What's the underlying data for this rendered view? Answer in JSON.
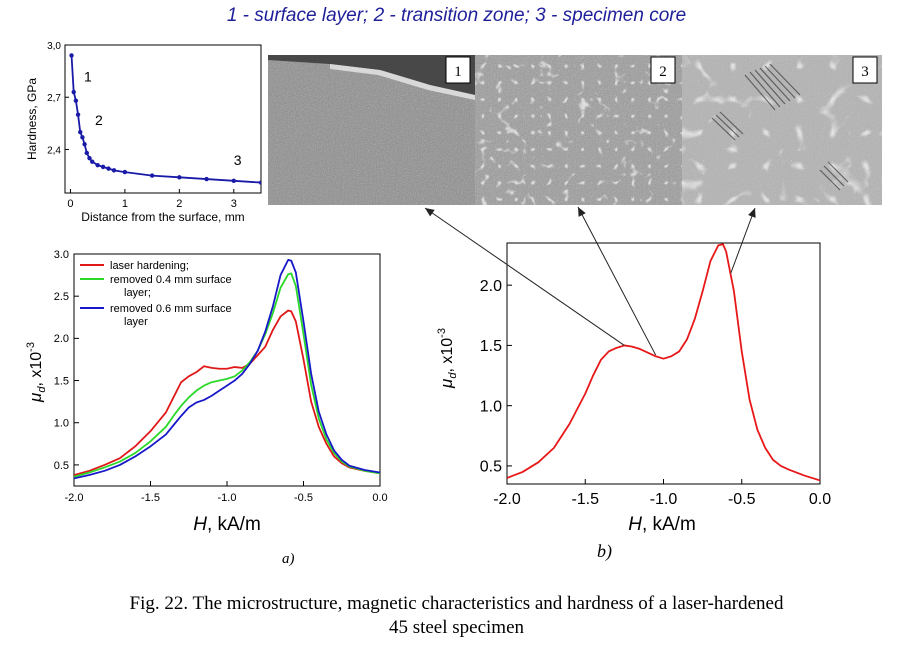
{
  "headline": "1 - surface layer;  2 - transition zone;  3 - specimen core",
  "caption": {
    "line1": "Fig. 22. The microstructure, magnetic characteristics and hardness of a laser-hardened",
    "line2": "45 steel specimen"
  },
  "micrographs": {
    "labels": [
      "1",
      "2",
      "3"
    ],
    "colors": {
      "zone1": "#8c8c8c",
      "zone2": "#9a9a9a",
      "zone3": "#b4b4b4",
      "ferrite": "#e6e6e6"
    }
  },
  "panel_labels": {
    "a": "a)",
    "b": "b)"
  },
  "chart_data": [
    {
      "id": "hardness",
      "type": "line",
      "xlabel": "Distance from the surface, mm",
      "ylabel": "Hardness, GPa",
      "xlim": [
        -0.1,
        3.5
      ],
      "ylim": [
        2.15,
        3.0
      ],
      "xticks": [
        0,
        1,
        2,
        3
      ],
      "yticks": [
        2.4,
        2.7,
        3.0
      ],
      "ytick_labels": [
        "2,4",
        "2,7",
        "3,0"
      ],
      "grid": false,
      "color": "#1a1aa8",
      "points": {
        "x": [
          0.02,
          0.06,
          0.1,
          0.14,
          0.18,
          0.22,
          0.26,
          0.3,
          0.35,
          0.4,
          0.5,
          0.6,
          0.7,
          0.8,
          1.0,
          1.5,
          2.0,
          2.5,
          3.0,
          3.5
        ],
        "y": [
          2.94,
          2.73,
          2.68,
          2.6,
          2.5,
          2.47,
          2.43,
          2.38,
          2.35,
          2.33,
          2.31,
          2.3,
          2.29,
          2.28,
          2.27,
          2.25,
          2.24,
          2.23,
          2.22,
          2.21
        ]
      },
      "annotations": [
        {
          "text": "1",
          "x": 0.25,
          "y": 2.79
        },
        {
          "text": "2",
          "x": 0.45,
          "y": 2.54
        },
        {
          "text": "3",
          "x": 3.0,
          "y": 2.31
        }
      ]
    },
    {
      "id": "panel-a",
      "type": "line",
      "xlabel_italic": "H",
      "xlabel_rest": ", kA/m",
      "ylabel_symbol": "μ",
      "ylabel_sub": "d",
      "ylabel_sep": ", ",
      "ylabel_unit": "x10",
      "ylabel_exp": "-3",
      "xlim": [
        -2.0,
        0.0
      ],
      "ylim": [
        0.25,
        3.0
      ],
      "xticks": [
        -2.0,
        -1.5,
        -1.0,
        -0.5,
        0.0
      ],
      "xtick_labels": [
        "-2.0",
        "-1.5",
        "-1.0",
        "-0.5",
        "0.0"
      ],
      "yticks": [
        0.5,
        1.0,
        1.5,
        2.0,
        2.5,
        3.0
      ],
      "ytick_labels": [
        "0.5",
        "1.0",
        "1.5",
        "2.0",
        "2.5",
        "3.0"
      ],
      "grid": false,
      "legend_position": "top-left",
      "x": [
        -2.0,
        -1.9,
        -1.8,
        -1.7,
        -1.6,
        -1.5,
        -1.4,
        -1.35,
        -1.3,
        -1.25,
        -1.2,
        -1.15,
        -1.1,
        -1.05,
        -1.0,
        -0.95,
        -0.9,
        -0.85,
        -0.8,
        -0.75,
        -0.7,
        -0.65,
        -0.6,
        -0.58,
        -0.55,
        -0.5,
        -0.45,
        -0.4,
        -0.35,
        -0.3,
        -0.25,
        -0.2,
        -0.1,
        0.0
      ],
      "series": [
        {
          "name": "laser hardening;",
          "color": "#e01818",
          "values": [
            0.38,
            0.43,
            0.5,
            0.58,
            0.72,
            0.9,
            1.12,
            1.3,
            1.48,
            1.55,
            1.6,
            1.67,
            1.65,
            1.64,
            1.64,
            1.66,
            1.65,
            1.7,
            1.8,
            1.9,
            2.1,
            2.26,
            2.33,
            2.32,
            2.2,
            1.75,
            1.25,
            0.95,
            0.75,
            0.6,
            0.52,
            0.47,
            0.43,
            0.4
          ]
        },
        {
          "name": "removed 0.4 mm surface layer;",
          "color": "#2ad82a",
          "values": [
            0.36,
            0.41,
            0.47,
            0.54,
            0.64,
            0.78,
            0.95,
            1.08,
            1.2,
            1.3,
            1.38,
            1.44,
            1.48,
            1.5,
            1.52,
            1.55,
            1.62,
            1.72,
            1.85,
            2.05,
            2.3,
            2.6,
            2.76,
            2.77,
            2.62,
            2.05,
            1.45,
            1.05,
            0.8,
            0.64,
            0.54,
            0.48,
            0.43,
            0.4
          ]
        },
        {
          "name": "removed 0.6 mm surface layer",
          "color": "#1818c8",
          "values": [
            0.34,
            0.38,
            0.43,
            0.5,
            0.6,
            0.72,
            0.86,
            0.97,
            1.08,
            1.18,
            1.24,
            1.27,
            1.32,
            1.38,
            1.44,
            1.5,
            1.58,
            1.7,
            1.85,
            2.08,
            2.38,
            2.75,
            2.93,
            2.92,
            2.78,
            2.2,
            1.58,
            1.13,
            0.86,
            0.67,
            0.56,
            0.49,
            0.44,
            0.41
          ]
        }
      ]
    },
    {
      "id": "panel-b",
      "type": "line",
      "xlabel_italic": "H",
      "xlabel_rest": ", kA/m",
      "ylabel_symbol": "μ",
      "ylabel_sub": "d",
      "ylabel_sep": ", ",
      "ylabel_unit": "x10",
      "ylabel_exp": "-3",
      "xlim": [
        -2.0,
        0.0
      ],
      "ylim": [
        0.35,
        2.35
      ],
      "xticks": [
        -2.0,
        -1.5,
        -1.0,
        -0.5,
        0.0
      ],
      "xtick_labels": [
        "-2.0",
        "-1.5",
        "-1.0",
        "-0.5",
        "0.0"
      ],
      "yticks": [
        0.5,
        1.0,
        1.5,
        2.0
      ],
      "ytick_labels": [
        "0.5",
        "1.0",
        "1.5",
        "2.0"
      ],
      "grid": false,
      "x": [
        -2.0,
        -1.9,
        -1.8,
        -1.7,
        -1.6,
        -1.5,
        -1.45,
        -1.4,
        -1.35,
        -1.3,
        -1.25,
        -1.2,
        -1.15,
        -1.1,
        -1.05,
        -1.0,
        -0.95,
        -0.9,
        -0.85,
        -0.8,
        -0.75,
        -0.7,
        -0.65,
        -0.62,
        -0.6,
        -0.55,
        -0.5,
        -0.45,
        -0.4,
        -0.35,
        -0.3,
        -0.25,
        -0.2,
        -0.1,
        0.0
      ],
      "series": [
        {
          "name": "",
          "color": "#e81818",
          "values": [
            0.4,
            0.45,
            0.53,
            0.65,
            0.85,
            1.1,
            1.25,
            1.38,
            1.45,
            1.48,
            1.5,
            1.49,
            1.47,
            1.44,
            1.41,
            1.39,
            1.41,
            1.45,
            1.55,
            1.72,
            1.95,
            2.2,
            2.33,
            2.34,
            2.28,
            1.95,
            1.45,
            1.05,
            0.8,
            0.65,
            0.55,
            0.5,
            0.47,
            0.42,
            0.38
          ]
        }
      ],
      "annotations": [
        {
          "target": "1",
          "x": -1.25,
          "y": 1.5
        },
        {
          "target": "2",
          "x": -1.05,
          "y": 1.42
        },
        {
          "target": "3",
          "x": -0.57,
          "y": 2.1
        }
      ]
    }
  ]
}
